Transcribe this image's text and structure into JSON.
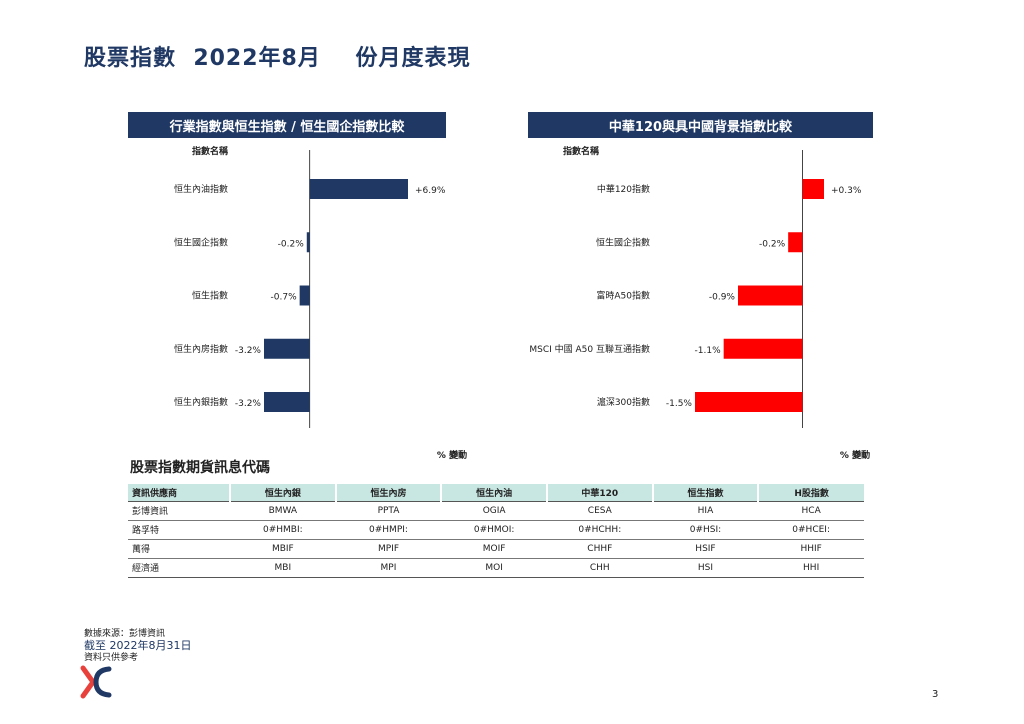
{
  "page": {
    "title": "股票指數  2022年8月    份月度表現",
    "page_number": "3"
  },
  "chart_data": [
    {
      "type": "bar",
      "orientation": "horizontal",
      "title": "行業指數與恒生指數 / 恒生國企指數比較",
      "category_header": "指數名稱",
      "xlabel": "% 變動",
      "categories": [
        "恒生內油指數",
        "恒生國企指數",
        "恒生指數",
        "恒生內房指數",
        "恒生內銀指數"
      ],
      "values": [
        6.9,
        -0.2,
        -0.7,
        -3.2,
        -3.2
      ],
      "labels": [
        "+6.9%",
        "-0.2%",
        "-0.7%",
        "-3.2%",
        "-3.2%"
      ],
      "xlim": [
        -3.2,
        6.9
      ],
      "color": "#1f3864"
    },
    {
      "type": "bar",
      "orientation": "horizontal",
      "title": "中華120與具中國背景指數比較",
      "category_header": "指數名稱",
      "xlabel": "% 變動",
      "categories": [
        "中華120指數",
        "恒生國企指數",
        "富時A50指數",
        "MSCI 中國 A50 互聯互通指數",
        "滬深300指數"
      ],
      "values": [
        0.3,
        -0.2,
        -0.9,
        -1.1,
        -1.5
      ],
      "labels": [
        "+0.3%",
        "-0.2%",
        "-0.9%",
        "-1.1%",
        "-1.5%"
      ],
      "xlim": [
        -1.5,
        0.3
      ],
      "color": "#ff0000"
    }
  ],
  "futures": {
    "title": "股票指數期貨訊息代碼",
    "headers": [
      "資訊供應商",
      "恒生內銀",
      "恒生內房",
      "恒生內油",
      "中華120",
      "恒生指數",
      "H股指數"
    ],
    "rows": [
      [
        "彭博資訊",
        "BMWA",
        "PPTA",
        "OGIA",
        "CESA",
        "HIA",
        "HCA"
      ],
      [
        "路孚特",
        "0#HMBI:",
        "0#HMPI:",
        "0#HMOI:",
        "0#HCHH:",
        "0#HSI:",
        "0#HCEI:"
      ],
      [
        "萬得",
        "MBIF",
        "MPIF",
        "MOIF",
        "CHHF",
        "HSIF",
        "HHIF"
      ],
      [
        "經濟通",
        "MBI",
        "MPI",
        "MOI",
        "CHH",
        "HSI",
        "HHI"
      ]
    ]
  },
  "footer": {
    "source": "數據來源：彭博資訊",
    "as_of": "截至  2022年8月31日",
    "reference": "資料只供參考"
  },
  "colors": {
    "title": "#1f3864",
    "header_bg": "#1f3864",
    "bar_left": "#1f3864",
    "bar_right": "#ff0000",
    "table_header_bg": "#c9e7e2",
    "logo_red": "#e8413c",
    "logo_navy": "#1f3864"
  }
}
